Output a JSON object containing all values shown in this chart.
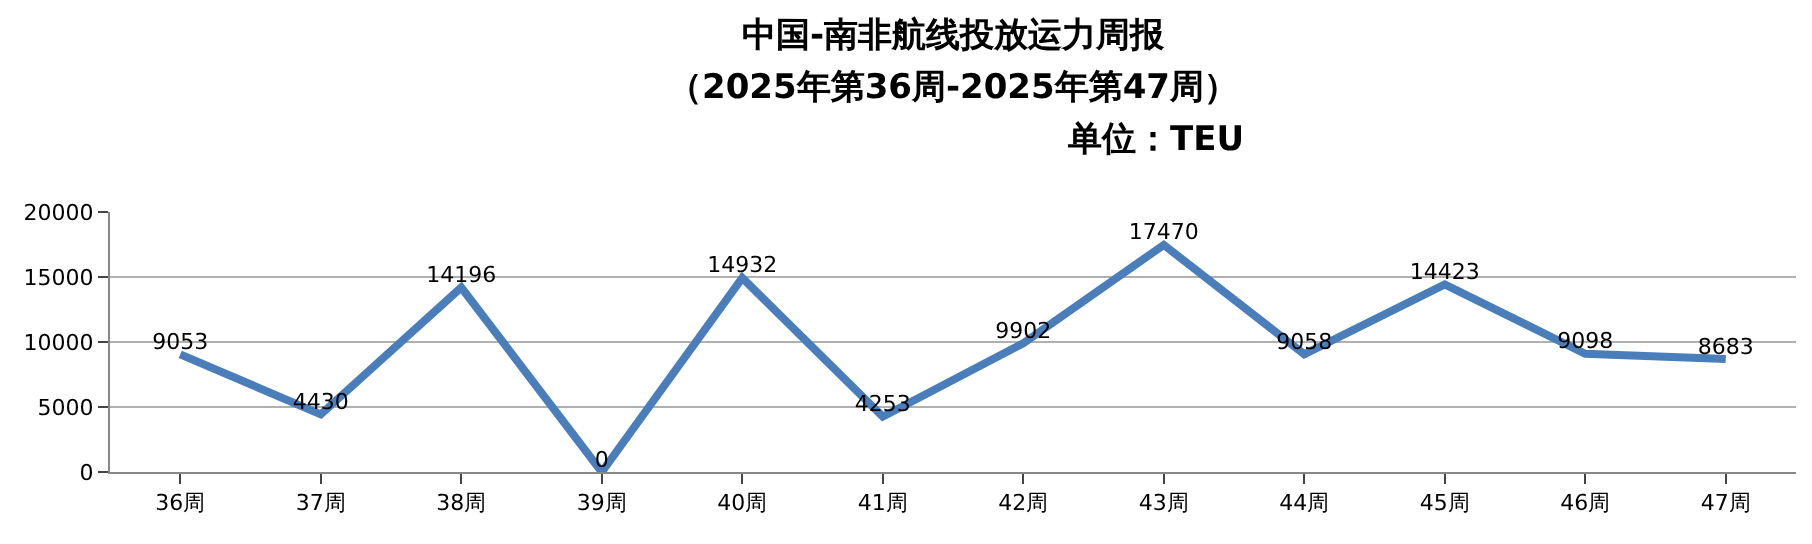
{
  "chart_data": {
    "type": "line",
    "title": "中国-南非航线投放运力周报",
    "subtitle": "（2025年第36周-2025年第47周）",
    "annotations": [
      "单位：TEU"
    ],
    "categories": [
      "36周",
      "37周",
      "38周",
      "39周",
      "40周",
      "41周",
      "42周",
      "43周",
      "44周",
      "45周",
      "46周",
      "47周"
    ],
    "series": [
      {
        "color": "#4a7ebb",
        "values": [
          9053,
          4430,
          14196,
          0,
          14932,
          4253,
          9902,
          17470,
          9058,
          14423,
          9098,
          8683
        ]
      }
    ],
    "ylim": [
      0,
      20000
    ],
    "yticks": [
      0,
      5000,
      10000,
      15000,
      20000
    ],
    "grid": "y",
    "legend": false,
    "marker": "none",
    "line_style": "solid",
    "data_labels": true
  }
}
